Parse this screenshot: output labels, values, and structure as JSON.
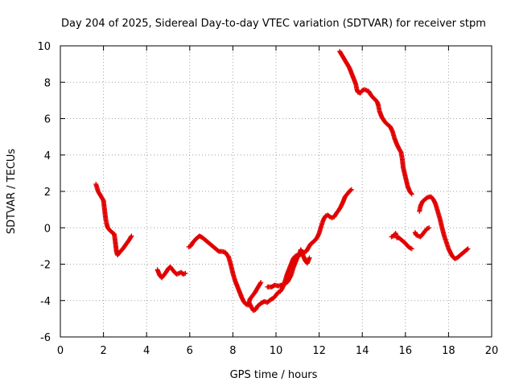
{
  "chart_data": {
    "type": "scatter",
    "title": "Day 204 of 2025, Sidereal Day-to-day VTEC variation (SDTVAR) for receiver stpm",
    "xlabel": "GPS time / hours",
    "ylabel": "SDTVAR / TECUs",
    "xlim": [
      0,
      20
    ],
    "ylim": [
      -6,
      10
    ],
    "xticks": [
      "0",
      "2",
      "4",
      "6",
      "8",
      "10",
      "12",
      "14",
      "16",
      "18",
      "20"
    ],
    "yticks": [
      "-6",
      "-4",
      "-2",
      "0",
      "2",
      "4",
      "6",
      "8",
      "10"
    ],
    "grid": true,
    "marker": "plus",
    "color": "#e00000",
    "series": [
      {
        "name": "SDTVAR",
        "segments": [
          [
            [
              1.65,
              2.4
            ],
            [
              1.75,
              2.0
            ],
            [
              1.85,
              1.8
            ],
            [
              1.95,
              1.6
            ],
            [
              2.0,
              1.5
            ],
            [
              2.05,
              1.0
            ],
            [
              2.1,
              0.5
            ],
            [
              2.15,
              0.2
            ],
            [
              2.2,
              0.0
            ],
            [
              2.3,
              -0.15
            ],
            [
              2.4,
              -0.25
            ],
            [
              2.5,
              -0.35
            ],
            [
              2.55,
              -0.8
            ],
            [
              2.6,
              -1.3
            ],
            [
              2.65,
              -1.5
            ],
            [
              2.75,
              -1.35
            ],
            [
              2.9,
              -1.15
            ],
            [
              3.05,
              -0.9
            ],
            [
              3.2,
              -0.65
            ],
            [
              3.3,
              -0.45
            ]
          ],
          [
            [
              4.5,
              -2.3
            ],
            [
              4.6,
              -2.6
            ],
            [
              4.7,
              -2.75
            ],
            [
              4.8,
              -2.6
            ],
            [
              4.9,
              -2.45
            ],
            [
              5.0,
              -2.25
            ],
            [
              5.1,
              -2.15
            ],
            [
              5.2,
              -2.3
            ],
            [
              5.3,
              -2.45
            ],
            [
              5.4,
              -2.55
            ],
            [
              5.5,
              -2.5
            ],
            [
              5.6,
              -2.45
            ],
            [
              5.7,
              -2.55
            ],
            [
              5.8,
              -2.5
            ]
          ],
          [
            [
              5.95,
              -1.05
            ],
            [
              6.05,
              -1.0
            ],
            [
              6.15,
              -0.8
            ],
            [
              6.3,
              -0.6
            ],
            [
              6.45,
              -0.45
            ],
            [
              6.6,
              -0.55
            ],
            [
              6.75,
              -0.7
            ],
            [
              6.9,
              -0.85
            ],
            [
              7.05,
              -1.0
            ],
            [
              7.2,
              -1.15
            ],
            [
              7.35,
              -1.3
            ],
            [
              7.5,
              -1.3
            ],
            [
              7.65,
              -1.35
            ],
            [
              7.8,
              -1.6
            ],
            [
              7.9,
              -2.0
            ],
            [
              8.0,
              -2.5
            ],
            [
              8.1,
              -2.9
            ],
            [
              8.2,
              -3.2
            ],
            [
              8.3,
              -3.5
            ],
            [
              8.4,
              -3.8
            ],
            [
              8.5,
              -4.05
            ],
            [
              8.6,
              -4.2
            ],
            [
              8.7,
              -4.25
            ],
            [
              8.75,
              -4.1
            ],
            [
              8.85,
              -4.35
            ],
            [
              8.95,
              -4.55
            ],
            [
              9.05,
              -4.5
            ],
            [
              9.15,
              -4.3
            ],
            [
              9.3,
              -4.15
            ],
            [
              9.45,
              -4.05
            ],
            [
              9.6,
              -4.1
            ],
            [
              9.75,
              -3.95
            ],
            [
              9.9,
              -3.85
            ],
            [
              10.0,
              -3.7
            ],
            [
              10.1,
              -3.55
            ],
            [
              10.2,
              -3.5
            ],
            [
              10.3,
              -3.3
            ],
            [
              10.4,
              -3.0
            ],
            [
              10.5,
              -2.6
            ],
            [
              10.6,
              -2.3
            ],
            [
              10.7,
              -2.0
            ],
            [
              10.8,
              -1.7
            ],
            [
              10.9,
              -1.55
            ],
            [
              11.0,
              -1.5
            ],
            [
              11.1,
              -1.5
            ],
            [
              11.2,
              -1.4
            ],
            [
              11.3,
              -1.35
            ],
            [
              11.4,
              -1.3
            ],
            [
              11.5,
              -1.1
            ],
            [
              11.6,
              -0.9
            ],
            [
              11.7,
              -0.8
            ],
            [
              11.8,
              -0.7
            ],
            [
              11.9,
              -0.55
            ],
            [
              12.0,
              -0.3
            ],
            [
              12.1,
              0.1
            ],
            [
              12.2,
              0.45
            ],
            [
              12.3,
              0.65
            ],
            [
              12.4,
              0.7
            ],
            [
              12.5,
              0.6
            ],
            [
              12.6,
              0.55
            ],
            [
              12.7,
              0.6
            ],
            [
              12.8,
              0.8
            ],
            [
              12.9,
              0.95
            ],
            [
              13.0,
              1.15
            ],
            [
              13.1,
              1.4
            ],
            [
              13.2,
              1.7
            ],
            [
              13.3,
              1.85
            ],
            [
              13.4,
              2.0
            ],
            [
              13.5,
              2.1
            ]
          ],
          [
            [
              8.75,
              -4.1
            ],
            [
              8.8,
              -3.9
            ],
            [
              8.9,
              -3.75
            ],
            [
              9.0,
              -3.6
            ],
            [
              9.1,
              -3.4
            ],
            [
              9.2,
              -3.2
            ],
            [
              9.3,
              -3.0
            ]
          ],
          [
            [
              9.6,
              -3.25
            ],
            [
              9.8,
              -3.25
            ],
            [
              9.95,
              -3.15
            ],
            [
              10.1,
              -3.2
            ],
            [
              10.25,
              -3.15
            ],
            [
              10.4,
              -3.1
            ],
            [
              10.55,
              -2.95
            ],
            [
              10.7,
              -2.6
            ],
            [
              10.8,
              -2.2
            ],
            [
              10.9,
              -1.9
            ],
            [
              11.0,
              -1.6
            ],
            [
              11.1,
              -1.4
            ],
            [
              11.15,
              -1.2
            ],
            [
              11.25,
              -1.5
            ],
            [
              11.35,
              -1.8
            ],
            [
              11.45,
              -1.95
            ],
            [
              11.55,
              -1.65
            ]
          ],
          [
            [
              12.95,
              9.7
            ],
            [
              13.1,
              9.4
            ],
            [
              13.2,
              9.2
            ],
            [
              13.3,
              9.0
            ],
            [
              13.4,
              8.8
            ],
            [
              13.5,
              8.5
            ],
            [
              13.6,
              8.2
            ],
            [
              13.7,
              7.9
            ],
            [
              13.75,
              7.6
            ],
            [
              13.8,
              7.45
            ],
            [
              13.9,
              7.4
            ],
            [
              14.0,
              7.55
            ],
            [
              14.1,
              7.6
            ],
            [
              14.2,
              7.55
            ],
            [
              14.3,
              7.5
            ],
            [
              14.4,
              7.3
            ],
            [
              14.5,
              7.15
            ],
            [
              14.6,
              7.05
            ],
            [
              14.7,
              6.9
            ],
            [
              14.75,
              6.7
            ],
            [
              14.8,
              6.4
            ],
            [
              14.9,
              6.1
            ],
            [
              15.0,
              5.9
            ],
            [
              15.1,
              5.75
            ],
            [
              15.2,
              5.65
            ],
            [
              15.3,
              5.55
            ],
            [
              15.4,
              5.3
            ],
            [
              15.5,
              4.9
            ],
            [
              15.6,
              4.6
            ],
            [
              15.7,
              4.35
            ],
            [
              15.8,
              4.15
            ],
            [
              15.85,
              3.8
            ],
            [
              15.9,
              3.3
            ],
            [
              16.0,
              2.8
            ],
            [
              16.1,
              2.3
            ],
            [
              16.2,
              2.0
            ],
            [
              16.3,
              1.85
            ]
          ],
          [
            [
              15.35,
              -0.5
            ],
            [
              15.45,
              -0.45
            ],
            [
              15.55,
              -0.3
            ],
            [
              15.6,
              -0.55
            ],
            [
              15.7,
              -0.55
            ],
            [
              15.8,
              -0.65
            ],
            [
              15.9,
              -0.75
            ],
            [
              16.0,
              -0.85
            ],
            [
              16.1,
              -1.0
            ],
            [
              16.2,
              -1.1
            ],
            [
              16.3,
              -1.15
            ]
          ],
          [
            [
              16.45,
              -0.25
            ],
            [
              16.5,
              -0.4
            ],
            [
              16.6,
              -0.45
            ],
            [
              16.7,
              -0.5
            ],
            [
              16.8,
              -0.35
            ],
            [
              16.9,
              -0.2
            ],
            [
              17.0,
              -0.05
            ],
            [
              17.1,
              0.0
            ]
          ],
          [
            [
              16.65,
              0.9
            ],
            [
              16.7,
              1.2
            ],
            [
              16.8,
              1.45
            ],
            [
              16.9,
              1.55
            ],
            [
              17.0,
              1.65
            ],
            [
              17.1,
              1.7
            ],
            [
              17.2,
              1.7
            ],
            [
              17.3,
              1.55
            ],
            [
              17.4,
              1.3
            ],
            [
              17.5,
              0.9
            ],
            [
              17.6,
              0.5
            ],
            [
              17.7,
              0.0
            ],
            [
              17.8,
              -0.45
            ],
            [
              17.9,
              -0.8
            ],
            [
              18.0,
              -1.15
            ],
            [
              18.1,
              -1.4
            ],
            [
              18.2,
              -1.6
            ],
            [
              18.3,
              -1.7
            ],
            [
              18.4,
              -1.65
            ],
            [
              18.5,
              -1.55
            ],
            [
              18.6,
              -1.45
            ],
            [
              18.7,
              -1.35
            ],
            [
              18.8,
              -1.25
            ],
            [
              18.9,
              -1.15
            ]
          ]
        ]
      }
    ]
  }
}
